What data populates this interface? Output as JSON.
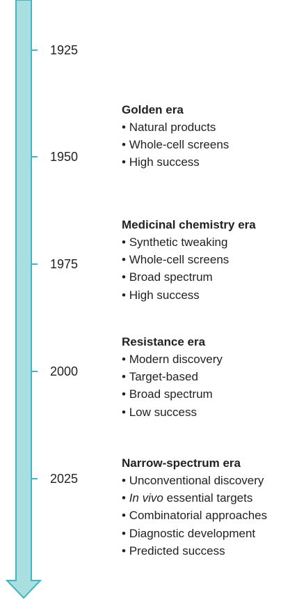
{
  "years": [
    "1925",
    "1950",
    "1975",
    "2000",
    "2025"
  ],
  "eras": [
    {
      "title": "Golden era",
      "items": [
        "Natural products",
        "Whole-cell screens",
        "High success"
      ]
    },
    {
      "title": "Medicinal chemistry era",
      "items": [
        "Synthetic tweaking",
        "Whole-cell screens",
        "Broad spectrum",
        "High success"
      ]
    },
    {
      "title": "Resistance era",
      "items": [
        "Modern discovery",
        "Target-based",
        "Broad spectrum",
        "Low success"
      ]
    },
    {
      "title": "Narrow-spectrum era",
      "items": [
        "Unconventional discovery",
        {
          "em": "In vivo",
          "rest": "essential targets"
        },
        "Combinatorial approaches",
        "Diagnostic development",
        "Predicted success"
      ]
    }
  ]
}
